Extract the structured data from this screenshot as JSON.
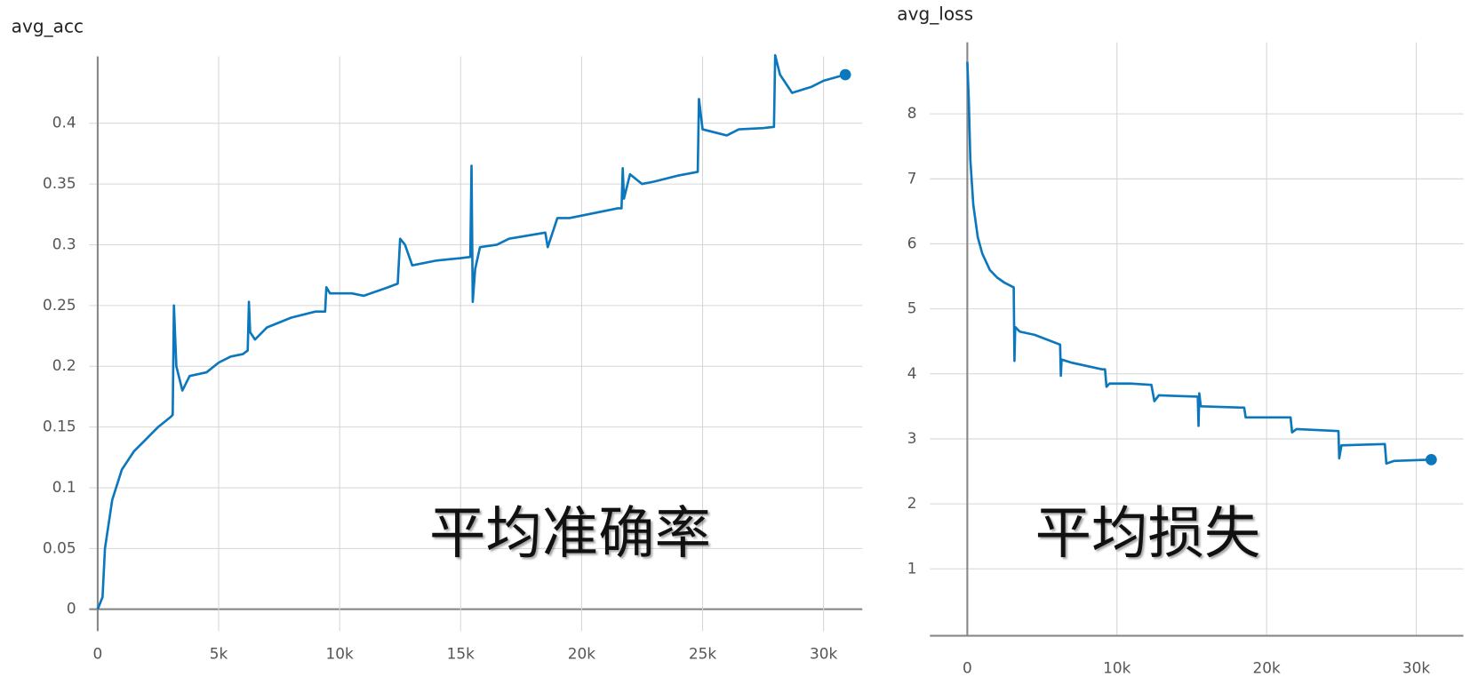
{
  "chart_data": [
    {
      "type": "line",
      "title": "avg_acc",
      "annotation": "平均准确率",
      "color": "#0b77bd",
      "grid": true,
      "x": [
        0,
        200,
        300,
        600,
        1000,
        1500,
        2000,
        2500,
        3000,
        3100,
        3150,
        3250,
        3500,
        3800,
        4500,
        5000,
        5500,
        6000,
        6200,
        6250,
        6300,
        6500,
        7000,
        8000,
        9000,
        9400,
        9450,
        9600,
        10500,
        11000,
        12000,
        12400,
        12500,
        12700,
        13000,
        14000,
        15000,
        15400,
        15450,
        15500,
        15600,
        15800,
        16500,
        17000,
        18500,
        18600,
        19000,
        19500,
        20500,
        21500,
        21650,
        21700,
        21750,
        22000,
        22500,
        23000,
        24000,
        24800,
        24850,
        25000,
        26000,
        26500,
        27500,
        27950,
        28000,
        28200,
        28700,
        29500,
        30000,
        30900
      ],
      "series": [
        {
          "name": "avg_acc",
          "color": "#0b77bd",
          "values": [
            0,
            0.01,
            0.05,
            0.09,
            0.115,
            0.13,
            0.14,
            0.15,
            0.158,
            0.16,
            0.25,
            0.2,
            0.18,
            0.192,
            0.195,
            0.203,
            0.208,
            0.21,
            0.213,
            0.253,
            0.228,
            0.222,
            0.232,
            0.24,
            0.245,
            0.245,
            0.265,
            0.26,
            0.26,
            0.258,
            0.265,
            0.268,
            0.305,
            0.3,
            0.283,
            0.287,
            0.289,
            0.29,
            0.365,
            0.253,
            0.28,
            0.298,
            0.3,
            0.305,
            0.31,
            0.298,
            0.322,
            0.322,
            0.326,
            0.33,
            0.33,
            0.363,
            0.338,
            0.358,
            0.35,
            0.352,
            0.357,
            0.36,
            0.42,
            0.395,
            0.39,
            0.395,
            0.396,
            0.397,
            0.456,
            0.44,
            0.425,
            0.43,
            0.435,
            0.44
          ]
        }
      ],
      "xlim": [
        -350,
        31600
      ],
      "ylim": [
        -0.018,
        0.455
      ],
      "xticks": [
        0,
        {
          "value": 5000,
          "label": "5k"
        },
        {
          "value": 10000,
          "label": "10k"
        },
        {
          "value": 15000,
          "label": "15k"
        },
        {
          "value": 20000,
          "label": "20k"
        },
        {
          "value": 25000,
          "label": "25k"
        },
        {
          "value": 30000,
          "label": "30k"
        }
      ],
      "yticks": [
        0,
        0.05,
        0.1,
        0.15,
        0.2,
        0.25,
        0.3,
        0.35,
        0.4
      ]
    },
    {
      "type": "line",
      "title": "avg_loss",
      "annotation": "平均损失",
      "color": "#0b77bd",
      "grid": true,
      "x": [
        0,
        100,
        200,
        400,
        700,
        1000,
        1500,
        2000,
        2500,
        3100,
        3150,
        3200,
        3500,
        4500,
        6200,
        6250,
        6300,
        7000,
        9000,
        9200,
        9300,
        9500,
        11000,
        12300,
        12500,
        12800,
        14000,
        15400,
        15450,
        15500,
        15600,
        18500,
        18600,
        21600,
        21700,
        22000,
        24800,
        24850,
        25000,
        27900,
        28000,
        28500,
        31000
      ],
      "series": [
        {
          "name": "avg_loss",
          "color": "#0b77bd",
          "values": [
            8.8,
            8.2,
            7.3,
            6.6,
            6.1,
            5.85,
            5.6,
            5.48,
            5.4,
            5.33,
            4.2,
            4.72,
            4.65,
            4.6,
            4.45,
            3.97,
            4.22,
            4.17,
            4.07,
            4.07,
            3.8,
            3.85,
            3.85,
            3.83,
            3.58,
            3.67,
            3.66,
            3.65,
            3.2,
            3.7,
            3.5,
            3.48,
            3.33,
            3.33,
            3.1,
            3.15,
            3.12,
            2.7,
            2.9,
            2.92,
            2.62,
            2.66,
            2.68
          ]
        }
      ],
      "xlim": [
        -2500,
        33150
      ],
      "ylim": [
        -0.03,
        9.1
      ],
      "xticks": [
        0,
        {
          "value": 10000,
          "label": "10k"
        },
        {
          "value": 20000,
          "label": "20k"
        },
        {
          "value": 30000,
          "label": "30k"
        }
      ],
      "yticks": [
        1,
        2,
        3,
        4,
        5,
        6,
        7,
        8
      ]
    }
  ]
}
